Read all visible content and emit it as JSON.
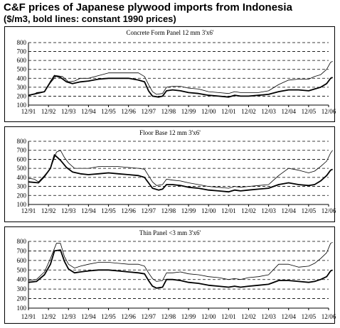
{
  "title": "C&F prices of Japanese plywood imports from Indonesia",
  "subtitle": "($/m3, bold lines: constant 1990 prices)",
  "chart_data": [
    {
      "type": "line",
      "title": "Concrete Form Panel 12 mm 3'x6'",
      "ylim": [
        100,
        800
      ],
      "yticks": [
        100,
        200,
        300,
        400,
        500,
        600,
        700,
        800
      ],
      "xticks": [
        "12/91",
        "12/92",
        "12/93",
        "12/94",
        "12/95",
        "12/96",
        "12/97",
        "12/98",
        "12/99",
        "12/00",
        "12/01",
        "12/02",
        "12/03",
        "12/04",
        "12/05",
        "12/06"
      ],
      "grid": "horizontal-dashed",
      "series": [
        {
          "style": "thin",
          "points": [
            [
              0,
              210
            ],
            [
              0.3,
              220
            ],
            [
              0.4,
              240
            ],
            [
              0.8,
              250
            ],
            [
              1.1,
              350
            ],
            [
              1.4,
              430
            ],
            [
              1.7,
              420
            ],
            [
              1.9,
              380
            ],
            [
              2.0,
              360
            ],
            [
              2.3,
              370
            ],
            [
              2.6,
              400
            ],
            [
              3.0,
              400
            ],
            [
              3.5,
              430
            ],
            [
              4.0,
              460
            ],
            [
              4.5,
              460
            ],
            [
              5.0,
              460
            ],
            [
              5.5,
              460
            ],
            [
              5.8,
              420
            ],
            [
              6.0,
              330
            ],
            [
              6.2,
              250
            ],
            [
              6.4,
              220
            ],
            [
              6.7,
              230
            ],
            [
              6.9,
              300
            ],
            [
              7.2,
              310
            ],
            [
              7.6,
              310
            ],
            [
              8.0,
              290
            ],
            [
              8.5,
              280
            ],
            [
              9.0,
              250
            ],
            [
              9.5,
              240
            ],
            [
              10.0,
              230
            ],
            [
              10.3,
              250
            ],
            [
              10.6,
              240
            ],
            [
              11.0,
              240
            ],
            [
              11.5,
              240
            ],
            [
              12.0,
              260
            ],
            [
              12.5,
              330
            ],
            [
              13.0,
              380
            ],
            [
              13.5,
              390
            ],
            [
              14.0,
              390
            ],
            [
              14.3,
              420
            ],
            [
              14.6,
              440
            ],
            [
              14.9,
              500
            ],
            [
              15.1,
              580
            ],
            [
              15.2,
              590
            ]
          ]
        },
        {
          "style": "bold",
          "points": [
            [
              0,
              210
            ],
            [
              0.4,
              230
            ],
            [
              0.8,
              250
            ],
            [
              1.1,
              360
            ],
            [
              1.3,
              430
            ],
            [
              1.6,
              410
            ],
            [
              1.9,
              360
            ],
            [
              2.2,
              340
            ],
            [
              2.6,
              360
            ],
            [
              3.0,
              370
            ],
            [
              3.5,
              390
            ],
            [
              4.0,
              400
            ],
            [
              4.5,
              400
            ],
            [
              5.0,
              400
            ],
            [
              5.5,
              380
            ],
            [
              5.8,
              360
            ],
            [
              6.0,
              260
            ],
            [
              6.2,
              200
            ],
            [
              6.5,
              190
            ],
            [
              6.7,
              200
            ],
            [
              6.9,
              260
            ],
            [
              7.2,
              270
            ],
            [
              7.6,
              260
            ],
            [
              8.0,
              240
            ],
            [
              8.5,
              230
            ],
            [
              9.0,
              210
            ],
            [
              9.5,
              200
            ],
            [
              10.0,
              190
            ],
            [
              10.3,
              210
            ],
            [
              10.6,
              200
            ],
            [
              11.0,
              200
            ],
            [
              11.5,
              210
            ],
            [
              12.0,
              220
            ],
            [
              12.5,
              250
            ],
            [
              13.0,
              270
            ],
            [
              13.5,
              270
            ],
            [
              14.0,
              260
            ],
            [
              14.3,
              280
            ],
            [
              14.6,
              300
            ],
            [
              14.9,
              340
            ],
            [
              15.1,
              400
            ],
            [
              15.2,
              410
            ]
          ]
        }
      ]
    },
    {
      "type": "line",
      "title": "Floor Base 12 mm 3'x6'",
      "ylim": [
        100,
        800
      ],
      "yticks": [
        100,
        200,
        300,
        400,
        500,
        600,
        700,
        800
      ],
      "xticks": [
        "12/91",
        "12/92",
        "12/93",
        "12/94",
        "12/95",
        "12/96",
        "12/97",
        "12/98",
        "12/99",
        "12/00",
        "12/01",
        "12/02",
        "12/03",
        "12/04",
        "12/05",
        "12/06"
      ],
      "grid": "horizontal-dashed",
      "series": [
        {
          "style": "thin",
          "points": [
            [
              0,
              390
            ],
            [
              0.3,
              380
            ],
            [
              0.5,
              350
            ],
            [
              0.8,
              420
            ],
            [
              1.1,
              500
            ],
            [
              1.4,
              680
            ],
            [
              1.6,
              700
            ],
            [
              1.8,
              620
            ],
            [
              2.0,
              560
            ],
            [
              2.3,
              500
            ],
            [
              2.6,
              500
            ],
            [
              3.0,
              500
            ],
            [
              3.5,
              520
            ],
            [
              4.0,
              520
            ],
            [
              4.5,
              520
            ],
            [
              5.0,
              510
            ],
            [
              5.5,
              500
            ],
            [
              5.8,
              490
            ],
            [
              6.0,
              420
            ],
            [
              6.2,
              350
            ],
            [
              6.4,
              310
            ],
            [
              6.7,
              320
            ],
            [
              6.9,
              380
            ],
            [
              7.2,
              370
            ],
            [
              7.6,
              360
            ],
            [
              8.0,
              340
            ],
            [
              8.5,
              320
            ],
            [
              9.0,
              300
            ],
            [
              9.5,
              290
            ],
            [
              10.0,
              280
            ],
            [
              10.3,
              300
            ],
            [
              10.6,
              290
            ],
            [
              11.0,
              300
            ],
            [
              11.5,
              310
            ],
            [
              12.0,
              320
            ],
            [
              12.5,
              420
            ],
            [
              13.0,
              500
            ],
            [
              13.5,
              480
            ],
            [
              14.0,
              450
            ],
            [
              14.3,
              470
            ],
            [
              14.6,
              520
            ],
            [
              14.9,
              580
            ],
            [
              15.1,
              670
            ],
            [
              15.2,
              700
            ]
          ]
        },
        {
          "style": "bold",
          "points": [
            [
              0,
              350
            ],
            [
              0.5,
              340
            ],
            [
              0.8,
              410
            ],
            [
              1.1,
              500
            ],
            [
              1.3,
              650
            ],
            [
              1.6,
              590
            ],
            [
              1.9,
              510
            ],
            [
              2.2,
              460
            ],
            [
              2.6,
              440
            ],
            [
              3.0,
              430
            ],
            [
              3.5,
              440
            ],
            [
              4.0,
              450
            ],
            [
              4.5,
              440
            ],
            [
              5.0,
              430
            ],
            [
              5.5,
              420
            ],
            [
              5.8,
              400
            ],
            [
              6.0,
              340
            ],
            [
              6.2,
              280
            ],
            [
              6.5,
              260
            ],
            [
              6.7,
              270
            ],
            [
              6.9,
              320
            ],
            [
              7.2,
              320
            ],
            [
              7.6,
              310
            ],
            [
              8.0,
              290
            ],
            [
              8.5,
              280
            ],
            [
              9.0,
              260
            ],
            [
              9.5,
              250
            ],
            [
              10.0,
              240
            ],
            [
              10.3,
              260
            ],
            [
              10.6,
              250
            ],
            [
              11.0,
              260
            ],
            [
              11.5,
              270
            ],
            [
              12.0,
              280
            ],
            [
              12.5,
              320
            ],
            [
              13.0,
              340
            ],
            [
              13.5,
              320
            ],
            [
              14.0,
              310
            ],
            [
              14.3,
              320
            ],
            [
              14.6,
              360
            ],
            [
              14.9,
              420
            ],
            [
              15.1,
              480
            ],
            [
              15.2,
              490
            ]
          ]
        }
      ]
    },
    {
      "type": "line",
      "title": "Thin Panel <3 mm 3'x6'",
      "ylim": [
        100,
        800
      ],
      "yticks": [
        100,
        200,
        300,
        400,
        500,
        600,
        700,
        800
      ],
      "xticks": [
        "12/91",
        "12/92",
        "12/93",
        "12/94",
        "12/95",
        "12/96",
        "12/97",
        "12/98",
        "12/99",
        "12/00",
        "12/01",
        "12/02",
        "12/03",
        "12/04",
        "12/05",
        "12/06"
      ],
      "grid": "horizontal-dashed",
      "series": [
        {
          "style": "thin",
          "points": [
            [
              0,
              390
            ],
            [
              0.4,
              400
            ],
            [
              0.8,
              480
            ],
            [
              1.1,
              620
            ],
            [
              1.4,
              780
            ],
            [
              1.6,
              780
            ],
            [
              1.8,
              640
            ],
            [
              2.0,
              560
            ],
            [
              2.3,
              520
            ],
            [
              2.6,
              540
            ],
            [
              3.0,
              560
            ],
            [
              3.5,
              580
            ],
            [
              4.0,
              580
            ],
            [
              4.5,
              570
            ],
            [
              5.0,
              560
            ],
            [
              5.5,
              560
            ],
            [
              5.8,
              540
            ],
            [
              6.0,
              470
            ],
            [
              6.2,
              410
            ],
            [
              6.4,
              380
            ],
            [
              6.7,
              390
            ],
            [
              6.9,
              470
            ],
            [
              7.2,
              470
            ],
            [
              7.6,
              480
            ],
            [
              8.0,
              460
            ],
            [
              8.5,
              450
            ],
            [
              9.0,
              430
            ],
            [
              9.5,
              420
            ],
            [
              10.0,
              400
            ],
            [
              10.3,
              410
            ],
            [
              10.6,
              400
            ],
            [
              11.0,
              420
            ],
            [
              11.5,
              430
            ],
            [
              12.0,
              450
            ],
            [
              12.5,
              560
            ],
            [
              13.0,
              560
            ],
            [
              13.5,
              530
            ],
            [
              14.0,
              540
            ],
            [
              14.3,
              570
            ],
            [
              14.6,
              620
            ],
            [
              14.9,
              680
            ],
            [
              15.1,
              780
            ],
            [
              15.2,
              790
            ]
          ]
        },
        {
          "style": "bold",
          "points": [
            [
              0,
              370
            ],
            [
              0.4,
              380
            ],
            [
              0.8,
              450
            ],
            [
              1.1,
              560
            ],
            [
              1.3,
              700
            ],
            [
              1.6,
              710
            ],
            [
              1.8,
              590
            ],
            [
              2.0,
              510
            ],
            [
              2.3,
              470
            ],
            [
              2.6,
              480
            ],
            [
              3.0,
              490
            ],
            [
              3.5,
              500
            ],
            [
              4.0,
              500
            ],
            [
              4.5,
              490
            ],
            [
              5.0,
              480
            ],
            [
              5.5,
              470
            ],
            [
              5.8,
              460
            ],
            [
              6.0,
              390
            ],
            [
              6.2,
              330
            ],
            [
              6.4,
              310
            ],
            [
              6.7,
              320
            ],
            [
              6.9,
              400
            ],
            [
              7.2,
              400
            ],
            [
              7.6,
              390
            ],
            [
              8.0,
              370
            ],
            [
              8.5,
              360
            ],
            [
              9.0,
              340
            ],
            [
              9.5,
              330
            ],
            [
              10.0,
              320
            ],
            [
              10.3,
              330
            ],
            [
              10.6,
              320
            ],
            [
              11.0,
              330
            ],
            [
              11.5,
              340
            ],
            [
              12.0,
              350
            ],
            [
              12.5,
              390
            ],
            [
              13.0,
              390
            ],
            [
              13.5,
              380
            ],
            [
              14.0,
              370
            ],
            [
              14.3,
              380
            ],
            [
              14.6,
              400
            ],
            [
              14.9,
              430
            ],
            [
              15.1,
              490
            ],
            [
              15.2,
              500
            ]
          ]
        }
      ]
    }
  ]
}
